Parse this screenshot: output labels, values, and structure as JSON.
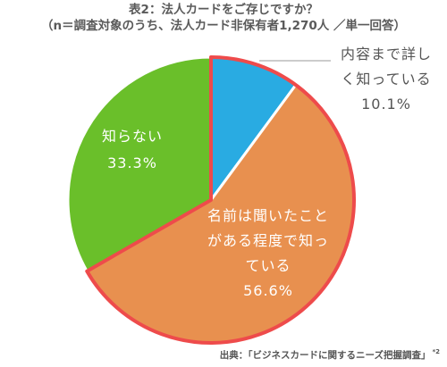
{
  "title_line1": "表2：法人カードをご存じですか？",
  "title_line2": "（n＝調査対象のうち、法人カード非保有者1,270人 ／単一回答）",
  "source": "出典：「ビジネスカードに関するニーズ把握調査」",
  "source_note": "*2",
  "chart_data": {
    "type": "pie",
    "slices": [
      {
        "label_lines": [
          "内容まで詳し",
          "く知っている"
        ],
        "value_label": "10.1%",
        "value": 10.1,
        "color": "#29abe2"
      },
      {
        "label_lines": [
          "名前は聞いたこと",
          "がある程度で知っ",
          "ている"
        ],
        "value_label": "56.6%",
        "value": 56.6,
        "color": "#e8904f"
      },
      {
        "label_lines": [
          "知らない"
        ],
        "value_label": "33.3%",
        "value": 33.3,
        "color": "#6abf2a"
      }
    ],
    "highlight_slice_stroke": "#ee4b4b"
  }
}
